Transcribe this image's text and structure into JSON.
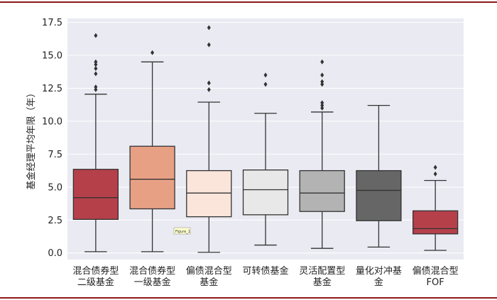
{
  "chart_data": {
    "type": "box",
    "ylabel": "基金经理平均年限（年）",
    "ylim": [
      -0.5,
      17.8
    ],
    "yticks": [
      0.0,
      2.5,
      5.0,
      7.5,
      10.0,
      12.5,
      15.0,
      17.5
    ],
    "ytick_labels": [
      "0.0",
      "2.5",
      "5.0",
      "7.5",
      "10.0",
      "12.5",
      "15.0",
      "17.5"
    ],
    "grid": true,
    "categories": [
      [
        "混合债券型",
        "二级基金"
      ],
      [
        "混合债券型",
        "一级基金"
      ],
      [
        "偏债混合型",
        "基金"
      ],
      [
        "可转债基金"
      ],
      [
        "灵活配置型",
        "基金"
      ],
      [
        "量化对冲基",
        "金"
      ],
      [
        "偏债混合型",
        "FOF"
      ]
    ],
    "boxes": [
      {
        "whisker_low": 0.1,
        "q1": 2.55,
        "median": 4.2,
        "q3": 6.35,
        "whisker_high": 12.05,
        "outliers": [
          12.4,
          12.6,
          13.6,
          14.0,
          14.3,
          14.5,
          16.5
        ],
        "color": "#b5404a"
      },
      {
        "whisker_low": 0.1,
        "q1": 3.35,
        "median": 5.6,
        "q3": 8.1,
        "whisker_high": 14.5,
        "outliers": [
          15.2
        ],
        "color": "#e8a085"
      },
      {
        "whisker_low": 0.05,
        "q1": 2.75,
        "median": 4.55,
        "q3": 6.25,
        "whisker_high": 11.45,
        "outliers": [
          12.4,
          12.9,
          15.8,
          17.1
        ],
        "color": "#fbe5db"
      },
      {
        "whisker_low": 0.6,
        "q1": 2.9,
        "median": 4.8,
        "q3": 6.3,
        "whisker_high": 10.6,
        "outliers": [
          12.8,
          13.5
        ],
        "color": "#e8e8e8"
      },
      {
        "whisker_low": 0.35,
        "q1": 3.15,
        "median": 4.55,
        "q3": 6.25,
        "whisker_high": 10.7,
        "outliers": [
          11.0,
          11.2,
          11.4,
          12.8,
          13.0,
          13.5,
          14.5
        ],
        "color": "#b3b3b3"
      },
      {
        "whisker_low": 0.45,
        "q1": 2.45,
        "median": 4.75,
        "q3": 6.25,
        "whisker_high": 11.2,
        "outliers": [],
        "color": "#666666"
      },
      {
        "whisker_low": 0.2,
        "q1": 1.45,
        "median": 1.85,
        "q3": 3.2,
        "whisker_high": 5.5,
        "outliers": [
          6.0,
          6.5
        ],
        "color": "#b5404a"
      }
    ],
    "annotation": "Figure_1"
  }
}
